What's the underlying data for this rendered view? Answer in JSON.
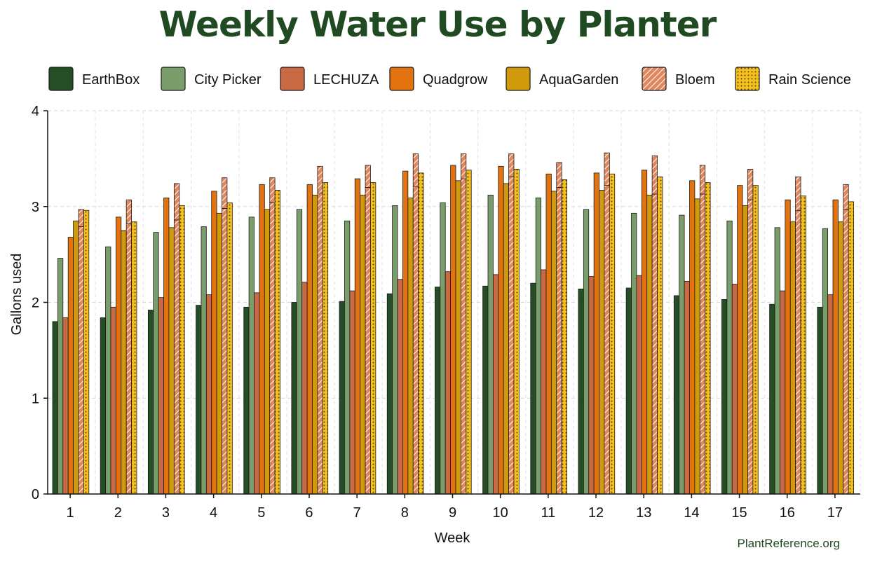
{
  "chart_data": {
    "type": "bar",
    "title": "Weekly Water Use by Planter",
    "xlabel": "Week",
    "ylabel": "Gallons used",
    "ylim": [
      0,
      4
    ],
    "yticks": [
      "0",
      "1",
      "2",
      "3",
      "4"
    ],
    "grid": true,
    "legend_placement": "top",
    "source": "PlantReference.org",
    "categories": [
      "1",
      "2",
      "3",
      "4",
      "5",
      "6",
      "7",
      "8",
      "9",
      "10",
      "11",
      "12",
      "13",
      "14",
      "15",
      "16",
      "17"
    ],
    "series": [
      {
        "name": "EarthBox",
        "color": "#254d26",
        "pattern": "solid",
        "values": [
          1.8,
          1.84,
          1.92,
          1.97,
          1.95,
          2.0,
          2.01,
          2.09,
          2.16,
          2.17,
          2.2,
          2.14,
          2.15,
          2.07,
          2.03,
          1.98,
          1.95
        ]
      },
      {
        "name": "City Picker",
        "color": "#7a9e6b",
        "pattern": "solid",
        "values": [
          2.46,
          2.58,
          2.73,
          2.79,
          2.89,
          2.97,
          2.85,
          3.01,
          3.04,
          3.12,
          3.09,
          2.97,
          2.93,
          2.91,
          2.85,
          2.78,
          2.77
        ]
      },
      {
        "name": "LECHUZA",
        "color": "#c96a45",
        "pattern": "solid",
        "values": [
          1.84,
          1.95,
          2.05,
          2.08,
          2.1,
          2.21,
          2.12,
          2.24,
          2.32,
          2.29,
          2.34,
          2.27,
          2.28,
          2.22,
          2.19,
          2.12,
          2.08
        ]
      },
      {
        "name": "Quadgrow",
        "color": "#e3730f",
        "pattern": "solid",
        "values": [
          2.68,
          2.89,
          3.09,
          3.16,
          3.23,
          3.23,
          3.29,
          3.37,
          3.43,
          3.42,
          3.34,
          3.35,
          3.38,
          3.27,
          3.22,
          3.07,
          3.07
        ]
      },
      {
        "name": "AquaGarden",
        "color": "#d09a0c",
        "pattern": "solid",
        "values": [
          2.85,
          2.75,
          2.78,
          2.93,
          2.97,
          3.12,
          3.12,
          3.09,
          3.27,
          3.24,
          3.16,
          3.17,
          3.12,
          3.08,
          3.01,
          2.84,
          2.84
        ]
      },
      {
        "name": "Bloem",
        "color": "#e0875e",
        "pattern": "hatch",
        "values": [
          2.79,
          2.82,
          2.86,
          2.98,
          3.04,
          3.14,
          3.2,
          3.21,
          3.29,
          3.31,
          3.2,
          3.22,
          3.13,
          3.13,
          3.07,
          2.96,
          2.97
        ]
      },
      {
        "name": "Rain Science",
        "color": "#f4c020",
        "pattern": "dots",
        "values": [
          2.96,
          2.84,
          3.01,
          3.04,
          3.17,
          3.25,
          3.25,
          3.35,
          3.38,
          3.39,
          3.28,
          3.34,
          3.31,
          3.25,
          3.22,
          3.11,
          3.05
        ]
      }
    ],
    "bloem_caps": [
      2.97,
      3.07,
      3.24,
      3.3,
      3.3,
      3.42,
      3.43,
      3.55,
      3.55,
      3.55,
      3.46,
      3.56,
      3.53,
      3.43,
      3.39,
      3.31,
      3.23
    ]
  }
}
